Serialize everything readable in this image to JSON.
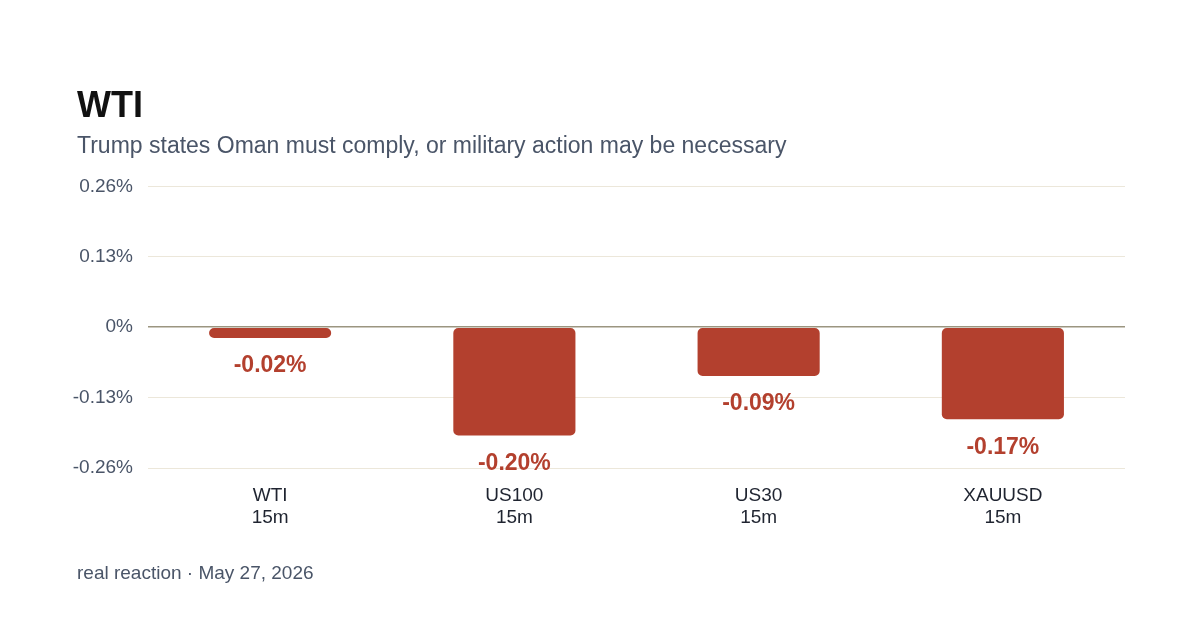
{
  "chart_data": {
    "type": "bar",
    "title": "WTI",
    "subtitle": "Trump states Oman must comply, or military action may be necessary",
    "categories": [
      "WTI\n15m",
      "US100\n15m",
      "US30\n15m",
      "XAUUSD\n15m"
    ],
    "values": [
      -0.02,
      -0.2,
      -0.09,
      -0.17
    ],
    "color": "#b3402e",
    "value_labels": [
      "-0.02%",
      "-0.20%",
      "-0.09%",
      "-0.17%"
    ],
    "ylim": [
      -0.26,
      0.26
    ],
    "yticks": [
      {
        "value": -0.26,
        "label": "-0.26%"
      },
      {
        "value": -0.13,
        "label": "-0.13%"
      },
      {
        "value": 0,
        "label": "0%"
      },
      {
        "value": 0.13,
        "label": "0.13%"
      },
      {
        "value": 0.26,
        "label": "0.26%"
      }
    ],
    "grid": "y",
    "legend": false,
    "annotations": [
      "real reaction · May 27, 2026"
    ]
  }
}
